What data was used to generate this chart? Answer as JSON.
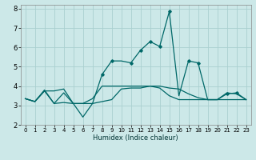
{
  "title": "",
  "xlabel": "Humidex (Indice chaleur)",
  "background_color": "#cce8e8",
  "grid_color": "#aacfcf",
  "line_color": "#006868",
  "xlim": [
    -0.5,
    23.5
  ],
  "ylim": [
    2.0,
    8.2
  ],
  "xtick_labels": [
    "0",
    "1",
    "2",
    "3",
    "4",
    "5",
    "6",
    "7",
    "8",
    "9",
    "10",
    "11",
    "12",
    "13",
    "14",
    "15",
    "16",
    "17",
    "18",
    "19",
    "20",
    "21",
    "22",
    "23"
  ],
  "xticks": [
    0,
    1,
    2,
    3,
    4,
    5,
    6,
    7,
    8,
    9,
    10,
    11,
    12,
    13,
    14,
    15,
    16,
    17,
    18,
    19,
    20,
    21,
    22,
    23
  ],
  "yticks": [
    2,
    3,
    4,
    5,
    6,
    7,
    8
  ],
  "series1_x": [
    0,
    1,
    2,
    3,
    4,
    5,
    6,
    7,
    8,
    9,
    10,
    11,
    12,
    13,
    14,
    15,
    16,
    17,
    18,
    19,
    20,
    21,
    22,
    23
  ],
  "series1_y": [
    3.35,
    3.2,
    3.8,
    3.1,
    3.15,
    3.1,
    2.4,
    3.1,
    4.6,
    5.3,
    5.3,
    5.2,
    5.85,
    6.3,
    6.05,
    7.85,
    3.5,
    5.3,
    5.2,
    3.3,
    3.3,
    3.6,
    3.65,
    3.3
  ],
  "series1_markers_x": [
    8,
    9,
    11,
    12,
    13,
    14,
    15,
    17,
    18,
    21,
    22
  ],
  "series1_markers_y": [
    4.6,
    5.3,
    5.2,
    5.85,
    6.3,
    6.05,
    7.85,
    5.3,
    5.2,
    3.6,
    3.65
  ],
  "series2_x": [
    0,
    1,
    2,
    3,
    4,
    5,
    6,
    7,
    8,
    9,
    10,
    11,
    12,
    13,
    14,
    15,
    16,
    17,
    18,
    19,
    20,
    21,
    22,
    23
  ],
  "series2_y": [
    3.35,
    3.2,
    3.75,
    3.75,
    3.85,
    3.1,
    3.1,
    3.35,
    4.0,
    4.0,
    4.0,
    4.0,
    4.0,
    4.0,
    4.0,
    3.9,
    3.85,
    3.6,
    3.4,
    3.3,
    3.3,
    3.65,
    3.6,
    3.3
  ],
  "series3_x": [
    0,
    1,
    2,
    3,
    4,
    5,
    6,
    7,
    8,
    9,
    10,
    11,
    12,
    13,
    14,
    15,
    16,
    17,
    18,
    19,
    20,
    21,
    22,
    23
  ],
  "series3_y": [
    3.35,
    3.2,
    3.75,
    3.1,
    3.65,
    3.1,
    3.1,
    3.1,
    3.2,
    3.3,
    3.85,
    3.9,
    3.9,
    4.0,
    3.9,
    3.5,
    3.3,
    3.3,
    3.3,
    3.3,
    3.3,
    3.3,
    3.3,
    3.3
  ]
}
